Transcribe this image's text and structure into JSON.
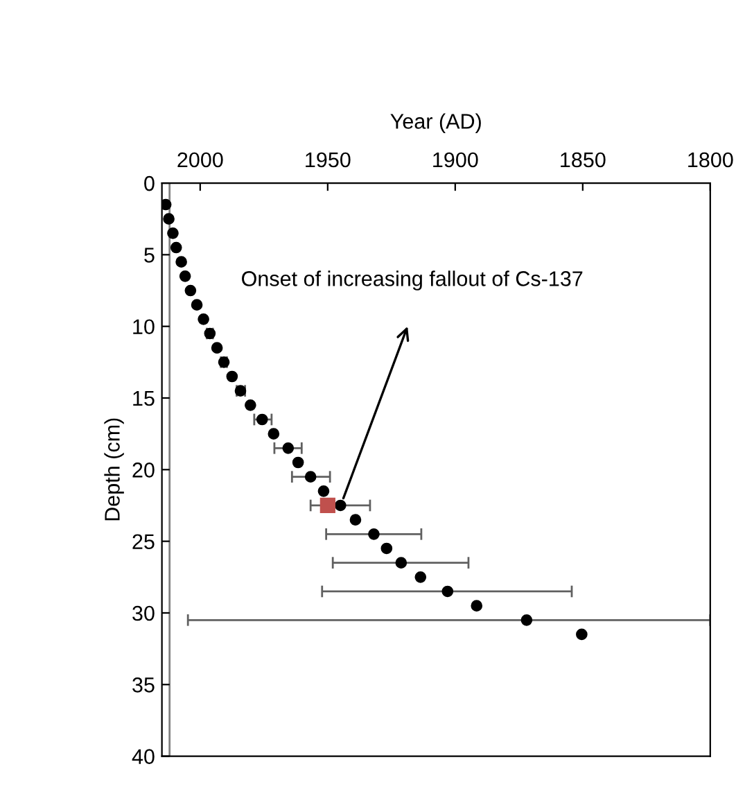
{
  "chart_data": {
    "type": "scatter",
    "xlabel": "Year (AD)",
    "ylabel": "Depth (cm)",
    "xlim": [
      2015,
      1800
    ],
    "xticks": [
      2000,
      1950,
      1900,
      1850,
      1800
    ],
    "ylim": [
      40,
      0
    ],
    "yticks": [
      0,
      5,
      10,
      15,
      20,
      25,
      30,
      35,
      40
    ],
    "grid": false,
    "legend": false,
    "ref_lines": [
      {
        "axis": "x",
        "value": 2012,
        "label": null,
        "color": "#808080"
      }
    ],
    "annotations": [
      "Onset of increasing fallout of Cs-137"
    ],
    "series": [
      {
        "marker": "circle",
        "color": "#000000",
        "x": [
          2013.5,
          2012.3,
          2010.7,
          2009.4,
          2007.4,
          2005.9,
          2003.8,
          2001.3,
          1998.7,
          1996.2,
          1993.4,
          1990.7,
          1987.5,
          1984.2,
          1980.3,
          1975.7,
          1971.2,
          1965.5,
          1961.6,
          1956.7,
          1951.6,
          1945,
          1939.1,
          1931.9,
          1926.9,
          1921.2,
          1913.6,
          1903,
          1891.6,
          1872,
          1850.4
        ],
        "values": [
          1.5,
          2.5,
          3.5,
          4.5,
          5.5,
          6.5,
          7.5,
          8.5,
          9.5,
          10.5,
          11.5,
          12.5,
          13.5,
          14.5,
          15.5,
          16.5,
          17.5,
          18.5,
          19.5,
          20.5,
          21.5,
          22.5,
          23.5,
          24.5,
          25.5,
          26.5,
          27.5,
          28.5,
          29.5,
          30.5,
          31.5
        ],
        "xerrors": [
          null,
          null,
          null,
          null,
          null,
          null,
          null,
          null,
          null,
          [
            1995,
            1997.4
          ],
          null,
          [
            1989.5,
            1991.9
          ],
          null,
          [
            1982.4,
            1985.7
          ],
          null,
          [
            1972,
            1978.8
          ],
          null,
          [
            1960.2,
            1970.9
          ],
          null,
          [
            1949.1,
            1964
          ],
          null,
          [
            1933.4,
            1956.7
          ],
          null,
          [
            1913.3,
            1950.6
          ],
          null,
          [
            1894.8,
            1948
          ],
          null,
          [
            1854.3,
            1952.2
          ],
          null,
          [
            1800,
            2004.8
          ],
          null
        ]
      },
      {
        "marker": "square",
        "color": "#c0504d",
        "x": [
          1950
        ],
        "values": [
          22.5
        ]
      }
    ]
  }
}
